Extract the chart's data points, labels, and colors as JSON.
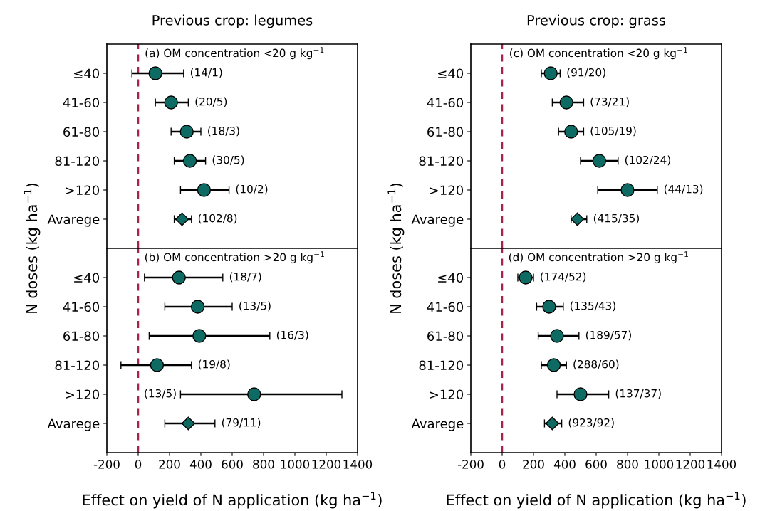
{
  "chart_data": [
    {
      "type": "scatter",
      "orientation": "horizontal",
      "title": "Previous crop: legumes",
      "subtitle": "(a) OM concentration <20 g kg$^{−1}$",
      "ylabel": "N doses (kg ha$^{−1}$)",
      "categories": [
        "≤40",
        "41-60",
        "61-80",
        "81-120",
        ">120",
        "Avarege"
      ],
      "series": [
        {
          "color": "#0e6b63",
          "marker": "circle",
          "values": [
            110,
            210,
            310,
            330,
            420,
            null
          ],
          "errors": [
            [
              -40,
              290
            ],
            [
              110,
              320
            ],
            [
              210,
              400
            ],
            [
              230,
              430
            ],
            [
              270,
              580
            ],
            null
          ],
          "value_labels": [
            "(14/1)",
            "(20/5)",
            "(18/3)",
            "(30/5)",
            "(10/2)",
            null
          ]
        },
        {
          "color": "#0e6b63",
          "marker": "diamond",
          "values": [
            null,
            null,
            null,
            null,
            null,
            280
          ],
          "errors": [
            null,
            null,
            null,
            null,
            null,
            [
              230,
              340
            ]
          ],
          "value_labels": [
            null,
            null,
            null,
            null,
            null,
            "(102/8)"
          ]
        }
      ],
      "xlim": [
        -200,
        1400
      ],
      "xticks": [
        -200,
        0,
        200,
        400,
        600,
        800,
        1000,
        1200,
        1400
      ],
      "tick_labels": "y",
      "grid": false,
      "legend": false,
      "ref_lines": [
        {
          "axis": "x",
          "value": 0,
          "color": "#a8234a",
          "line_style": "dashed"
        }
      ]
    },
    {
      "type": "scatter",
      "orientation": "horizontal",
      "subtitle": "(b) OM concentration >20 g kg$^{−1}$",
      "xlabel": "Effect on yield of N application (kg ha$^{−1}$)",
      "categories": [
        "≤40",
        "41-60",
        "61-80",
        "81-120",
        ">120",
        "Avarege"
      ],
      "series": [
        {
          "color": "#0e6b63",
          "marker": "circle",
          "values": [
            260,
            380,
            390,
            120,
            740,
            null
          ],
          "errors": [
            [
              40,
              540
            ],
            [
              170,
              600
            ],
            [
              70,
              840
            ],
            [
              -110,
              340
            ],
            [
              270,
              1300
            ],
            null
          ]
        },
        {
          "color": "#0e6b63",
          "marker": "diamond",
          "values": [
            null,
            null,
            null,
            null,
            null,
            320
          ],
          "errors": [
            null,
            null,
            null,
            null,
            null,
            [
              170,
              490
            ]
          ]
        }
      ],
      "annotations": [
        "(18/7)",
        "(13/5)",
        "(16/3)",
        "(19/8)",
        "(13/5)",
        "(79/11)"
      ],
      "xlim": [
        -200,
        1400
      ],
      "xticks": [
        -200,
        0,
        200,
        400,
        600,
        800,
        1000,
        1200,
        1400
      ],
      "grid": false,
      "legend": false,
      "ref_lines": [
        {
          "axis": "x",
          "value": 0,
          "color": "#a8234a",
          "line_style": "dashed"
        }
      ]
    },
    {
      "type": "scatter",
      "orientation": "horizontal",
      "title": "Previous crop: grass",
      "subtitle": "(c) OM concentration <20 g kg$^{−1}$",
      "ylabel": "N doses (kg ha$^{−1}$)",
      "categories": [
        "≤40",
        "41-60",
        "61-80",
        "81-120",
        ">120",
        "Avarege"
      ],
      "series": [
        {
          "color": "#0e6b63",
          "marker": "circle",
          "values": [
            310,
            410,
            440,
            620,
            800,
            null
          ],
          "errors": [
            [
              250,
              370
            ],
            [
              320,
              520
            ],
            [
              360,
              520
            ],
            [
              500,
              740
            ],
            [
              610,
              990
            ],
            null
          ],
          "value_labels": [
            "(91/20)",
            "(73/21)",
            "(105/19)",
            "(102/24)",
            "(44/13)",
            null
          ]
        },
        {
          "color": "#0e6b63",
          "marker": "diamond",
          "values": [
            null,
            null,
            null,
            null,
            null,
            480
          ],
          "errors": [
            null,
            null,
            null,
            null,
            null,
            [
              440,
              540
            ]
          ],
          "value_labels": [
            null,
            null,
            null,
            null,
            null,
            "(415/35)"
          ]
        }
      ],
      "xlim": [
        -200,
        1400
      ],
      "xticks": [
        -200,
        0,
        200,
        400,
        600,
        800,
        1000,
        1200,
        1400
      ],
      "tick_labels": "y",
      "grid": false,
      "legend": false,
      "ref_lines": [
        {
          "axis": "x",
          "value": 0,
          "color": "#a8234a",
          "line_style": "dashed"
        }
      ]
    },
    {
      "type": "scatter",
      "orientation": "horizontal",
      "subtitle": "(d) OM concentration >20 g kg$^{−1}$",
      "xlabel": "Effect on yield of N application (kg ha$^{−1}$)",
      "categories": [
        "≤40",
        "41-60",
        "61-80",
        "81-120",
        ">120",
        "Avarege"
      ],
      "series": [
        {
          "color": "#0e6b63",
          "marker": "circle",
          "values": [
            150,
            300,
            350,
            330,
            500,
            null
          ],
          "errors": [
            [
              100,
              200
            ],
            [
              220,
              390
            ],
            [
              230,
              490
            ],
            [
              250,
              410
            ],
            [
              350,
              680
            ],
            null
          ],
          "value_labels": [
            "(174/52)",
            "(135/43)",
            "(189/57)",
            "(288/60)",
            "(137/37)",
            null
          ]
        },
        {
          "color": "#0e6b63",
          "marker": "diamond",
          "values": [
            null,
            null,
            null,
            null,
            null,
            320
          ],
          "errors": [
            null,
            null,
            null,
            null,
            null,
            [
              270,
              380
            ]
          ],
          "value_labels": [
            null,
            null,
            null,
            null,
            null,
            "(923/92)"
          ]
        }
      ],
      "xlim": [
        -200,
        1400
      ],
      "xticks": [
        -200,
        0,
        200,
        400,
        600,
        800,
        1000,
        1200,
        1400
      ],
      "grid": false,
      "legend": false,
      "ref_lines": [
        {
          "axis": "x",
          "value": 0,
          "color": "#a8234a",
          "line_style": "dashed"
        }
      ]
    }
  ]
}
